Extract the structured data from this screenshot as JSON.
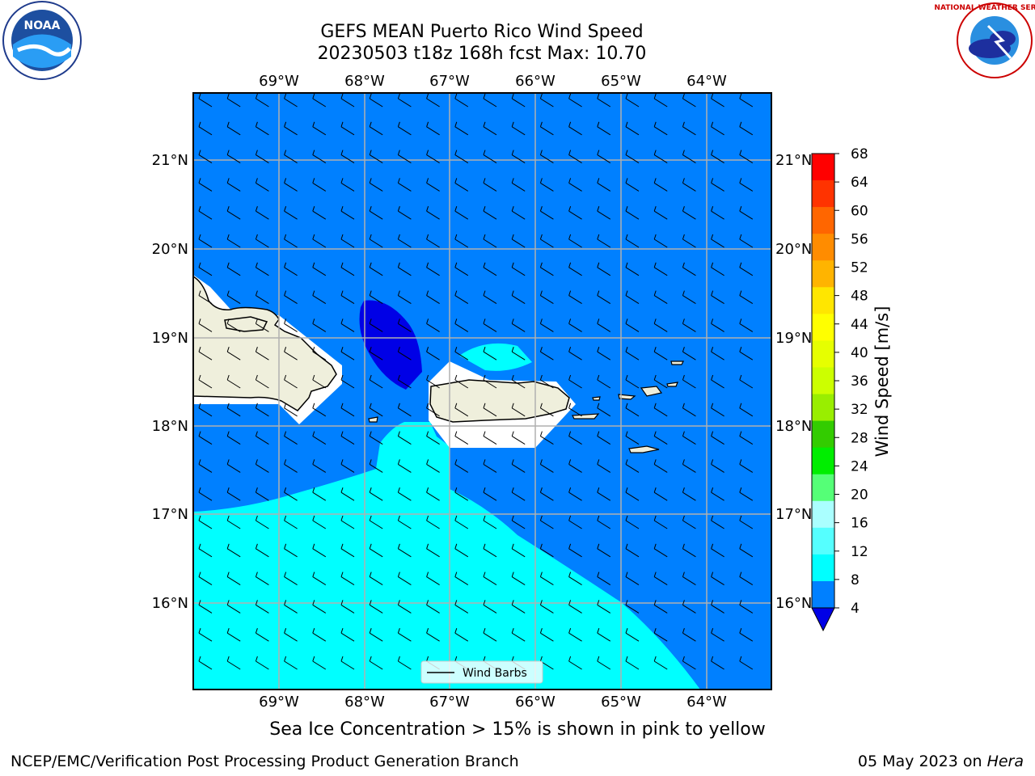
{
  "title": {
    "line1": "GEFS MEAN Puerto Rico Wind Speed",
    "line2": "20230503 t18z 168h fcst   Max: 10.70"
  },
  "map": {
    "longitude_ticks": [
      "69°W",
      "68°W",
      "67°W",
      "66°W",
      "65°W",
      "64°W"
    ],
    "latitude_ticks": [
      "21°N",
      "20°N",
      "19°N",
      "18°N",
      "17°N",
      "16°N"
    ],
    "colors": {
      "ocean_4_8": "#0080ff",
      "ocean_lt_4": "#0000e6",
      "ocean_8_12": "#00ffff",
      "land": "#efefdc",
      "gridline": "#b0b0b0"
    },
    "legend_label": "Wind Barbs"
  },
  "colorbar": {
    "label": "Wind Speed [m/s]",
    "ticks": [
      "68",
      "64",
      "60",
      "56",
      "52",
      "48",
      "44",
      "40",
      "36",
      "32",
      "28",
      "24",
      "20",
      "16",
      "12",
      "8",
      "4"
    ],
    "colors": [
      "#ff0000",
      "#ff3300",
      "#ff6600",
      "#ff8c00",
      "#ffb400",
      "#ffe600",
      "#ffff00",
      "#e6ff00",
      "#ccff00",
      "#99ee00",
      "#33cc00",
      "#00ee00",
      "#55ff77",
      "#aaffff",
      "#55ffff",
      "#00ffff",
      "#0080ff"
    ],
    "under_color": "#0000e6"
  },
  "caption": "Sea Ice Concentration > 15% is shown in pink to yellow",
  "footer": {
    "left": "NCEP/EMC/Verification Post Processing Product Generation Branch",
    "date": "05 May 2023 on ",
    "machine": "Hera"
  },
  "logos": {
    "noaa": "NOAA",
    "nws": "NATIONAL WEATHER SERVICE"
  }
}
